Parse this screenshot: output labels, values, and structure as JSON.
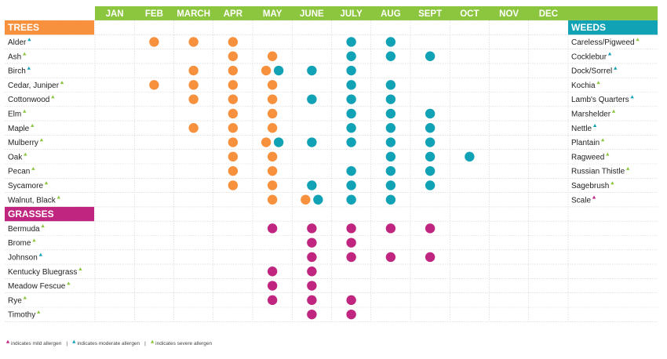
{
  "chart_data": {
    "type": "scatter",
    "months": [
      "JAN",
      "FEB",
      "MARCH",
      "APR",
      "MAY",
      "JUNE",
      "JULY",
      "AUG",
      "SEPT",
      "OCT",
      "NOV",
      "DEC"
    ],
    "colors": {
      "header_bar": "#8cc63f",
      "trees": "#f7913d",
      "grasses": "#c0267f",
      "weeds": "#11a2b5",
      "mild": "#c0267f",
      "moderate": "#11a2b5",
      "severe": "#8cc63f",
      "grid": "#cfcfcf"
    },
    "groups": [
      {
        "title": "TREES",
        "color": "trees",
        "rows": [
          {
            "name": "Alder",
            "allergen": "moderate",
            "dots": [
              [
                2,
                "o"
              ],
              [
                3,
                "o"
              ],
              [
                4,
                "o"
              ],
              [
                7,
                "t"
              ],
              [
                8,
                "t"
              ]
            ]
          },
          {
            "name": "Ash",
            "allergen": "severe",
            "dots": [
              [
                4,
                "o"
              ],
              [
                5,
                "o"
              ],
              [
                7,
                "t"
              ],
              [
                8,
                "t"
              ],
              [
                9,
                "t"
              ]
            ]
          },
          {
            "name": "Birch",
            "allergen": "moderate",
            "dots": [
              [
                3,
                "o"
              ],
              [
                4,
                "o"
              ],
              [
                5,
                "o"
              ],
              [
                5,
                "t"
              ],
              [
                6,
                "t"
              ],
              [
                7,
                "t"
              ]
            ]
          },
          {
            "name": "Cedar, Juniper",
            "allergen": "severe",
            "dots": [
              [
                2,
                "o"
              ],
              [
                3,
                "o"
              ],
              [
                4,
                "o"
              ],
              [
                5,
                "o"
              ],
              [
                7,
                "t"
              ],
              [
                8,
                "t"
              ]
            ]
          },
          {
            "name": "Cottonwood",
            "allergen": "severe",
            "dots": [
              [
                3,
                "o"
              ],
              [
                4,
                "o"
              ],
              [
                5,
                "o"
              ],
              [
                6,
                "t"
              ],
              [
                7,
                "t"
              ],
              [
                8,
                "t"
              ]
            ]
          },
          {
            "name": "Elm",
            "allergen": "severe",
            "dots": [
              [
                4,
                "o"
              ],
              [
                5,
                "o"
              ],
              [
                7,
                "t"
              ],
              [
                8,
                "t"
              ],
              [
                9,
                "t"
              ]
            ]
          },
          {
            "name": "Maple",
            "allergen": "severe",
            "dots": [
              [
                3,
                "o"
              ],
              [
                4,
                "o"
              ],
              [
                5,
                "o"
              ],
              [
                7,
                "t"
              ],
              [
                8,
                "t"
              ],
              [
                9,
                "t"
              ]
            ]
          },
          {
            "name": "Mulberry",
            "allergen": "severe",
            "dots": [
              [
                4,
                "o"
              ],
              [
                5,
                "o"
              ],
              [
                5,
                "t"
              ],
              [
                6,
                "t"
              ],
              [
                7,
                "t"
              ],
              [
                8,
                "t"
              ],
              [
                9,
                "t"
              ]
            ]
          },
          {
            "name": "Oak",
            "allergen": "severe",
            "dots": [
              [
                4,
                "o"
              ],
              [
                5,
                "o"
              ],
              [
                8,
                "t"
              ],
              [
                9,
                "t"
              ],
              [
                10,
                "t"
              ]
            ]
          },
          {
            "name": "Pecan",
            "allergen": "severe",
            "dots": [
              [
                4,
                "o"
              ],
              [
                5,
                "o"
              ],
              [
                7,
                "t"
              ],
              [
                8,
                "t"
              ],
              [
                9,
                "t"
              ]
            ]
          },
          {
            "name": "Sycamore",
            "allergen": "severe",
            "dots": [
              [
                4,
                "o"
              ],
              [
                5,
                "o"
              ],
              [
                6,
                "t"
              ],
              [
                7,
                "t"
              ],
              [
                8,
                "t"
              ],
              [
                9,
                "t"
              ]
            ]
          },
          {
            "name": "Walnut, Black",
            "allergen": "severe",
            "dots": [
              [
                5,
                "o"
              ],
              [
                6,
                "o"
              ],
              [
                6,
                "t"
              ],
              [
                7,
                "t"
              ],
              [
                8,
                "t"
              ]
            ]
          }
        ]
      },
      {
        "title": "GRASSES",
        "color": "grasses",
        "rows": [
          {
            "name": "Bermuda",
            "allergen": "severe",
            "dots": [
              [
                5,
                "g"
              ],
              [
                6,
                "g"
              ],
              [
                7,
                "g"
              ],
              [
                8,
                "g"
              ],
              [
                9,
                "g"
              ]
            ]
          },
          {
            "name": "Brome",
            "allergen": "severe",
            "dots": [
              [
                6,
                "g"
              ],
              [
                7,
                "g"
              ]
            ]
          },
          {
            "name": "Johnson",
            "allergen": "moderate",
            "dots": [
              [
                6,
                "g"
              ],
              [
                7,
                "g"
              ],
              [
                8,
                "g"
              ],
              [
                9,
                "g"
              ]
            ]
          },
          {
            "name": "Kentucky Bluegrass",
            "allergen": "severe",
            "dots": [
              [
                5,
                "g"
              ],
              [
                6,
                "g"
              ]
            ]
          },
          {
            "name": "Meadow Fescue",
            "allergen": "severe",
            "dots": [
              [
                5,
                "g"
              ],
              [
                6,
                "g"
              ]
            ]
          },
          {
            "name": "Rye",
            "allergen": "severe",
            "dots": [
              [
                5,
                "g"
              ],
              [
                6,
                "g"
              ],
              [
                7,
                "g"
              ]
            ]
          },
          {
            "name": "Timothy",
            "allergen": "severe",
            "dots": [
              [
                6,
                "g"
              ],
              [
                7,
                "g"
              ]
            ]
          }
        ]
      }
    ],
    "weeds": {
      "title": "WEEDS",
      "color": "weeds",
      "rows": [
        {
          "name": "Careless/Pigweed",
          "allergen": "severe"
        },
        {
          "name": "Cocklebur",
          "allergen": "moderate"
        },
        {
          "name": "Dock/Sorrel",
          "allergen": "moderate"
        },
        {
          "name": "Kochia",
          "allergen": "severe"
        },
        {
          "name": "Lamb's Quarters",
          "allergen": "moderate"
        },
        {
          "name": "Marshelder",
          "allergen": "severe"
        },
        {
          "name": "Nettle",
          "allergen": "moderate"
        },
        {
          "name": "Plantain",
          "allergen": "severe"
        },
        {
          "name": "Ragweed",
          "allergen": "severe"
        },
        {
          "name": "Russian Thistle",
          "allergen": "severe"
        },
        {
          "name": "Sagebrush",
          "allergen": "severe"
        },
        {
          "name": "Scale",
          "allergen": "mild"
        }
      ]
    },
    "legend": [
      {
        "level": "mild",
        "text": "indicates mild allergen"
      },
      {
        "level": "moderate",
        "text": "indicates moderate allergen"
      },
      {
        "level": "severe",
        "text": "indicates severe allergen"
      }
    ],
    "legend_separator": "|"
  }
}
